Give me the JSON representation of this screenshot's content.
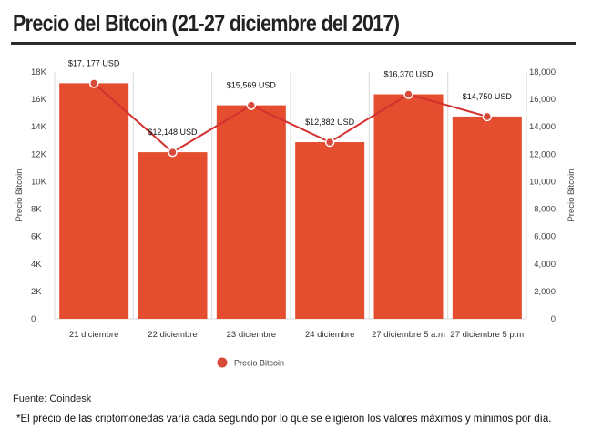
{
  "title": "Precio del Bitcoin (21-27 diciembre del 2017)",
  "source": "Fuente: Coindesk",
  "note": "*El precio de las criptomonedas varía cada segundo por lo que se eligieron los valores máximos y mínimos por día.",
  "chart_data": {
    "type": "bar",
    "categories": [
      "21 diciembre",
      "22 diciembre",
      "23 diciembre",
      "24 diciembre",
      "27 diciembre 5 a.m",
      "27 diciembre 5 p.m"
    ],
    "series": [
      {
        "name": "Precio Bitcoin",
        "type": "bar+line",
        "values": [
          17177,
          12148,
          15569,
          12882,
          16370,
          14750
        ],
        "labels": [
          "$17, 177 USD",
          "$12,148 USD",
          "$15,569 USD",
          "$12,882 USD",
          "$16,370 USD",
          "$14,750 USD"
        ]
      }
    ],
    "ylabel": "Precio Bitcoin",
    "ylabel_right": "Precio Bitcoin",
    "ylim": [
      0,
      18000
    ],
    "left_ticks": [
      "0",
      "2K",
      "4K",
      "6K",
      "8K",
      "10K",
      "12K",
      "14K",
      "16K",
      "18K"
    ],
    "right_ticks": [
      "0",
      "2,000",
      "4,000",
      "6,000",
      "8,000",
      "10,000",
      "12,000",
      "14,000",
      "16,000",
      "18,000"
    ],
    "legend": {
      "label": "Precio Bitcoin",
      "position": "bottom"
    },
    "grid": "vertical",
    "colors": {
      "bar": "#e44d2e",
      "line": "#d32f2f",
      "point": "#d84a3a",
      "grid": "#d9d9d9"
    }
  }
}
